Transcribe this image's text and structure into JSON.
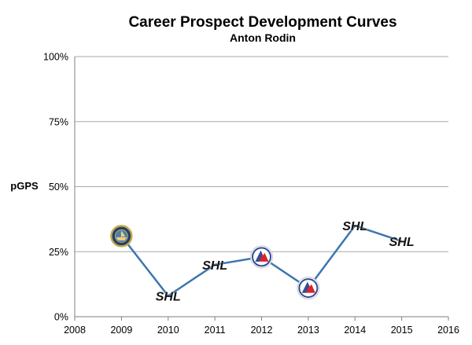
{
  "chart_data": {
    "type": "line",
    "title": "Career Prospect Development Curves",
    "subtitle": "Anton Rodin",
    "ylabel": "pGPS",
    "xlabel": "",
    "xlim": [
      2008,
      2016
    ],
    "ylim": [
      0,
      100
    ],
    "x_ticks": [
      "2008",
      "2009",
      "2010",
      "2011",
      "2012",
      "2013",
      "2014",
      "2015",
      "2016"
    ],
    "y_ticks": [
      "0%",
      "25%",
      "50%",
      "75%",
      "100%"
    ],
    "grid": true,
    "series": [
      {
        "color": "#3b76b0",
        "points": [
          {
            "x": 2009,
            "y": 31,
            "marker": "team-logo-icon"
          },
          {
            "x": 2010,
            "y": 8,
            "marker": "shl-logo-icon",
            "marker_text": "SHL"
          },
          {
            "x": 2011,
            "y": 20,
            "marker": "shl-logo-icon",
            "marker_text": "SHL"
          },
          {
            "x": 2012,
            "y": 23,
            "marker": "ahl-logo-icon"
          },
          {
            "x": 2013,
            "y": 11,
            "marker": "ahl-logo-icon"
          },
          {
            "x": 2014,
            "y": 35,
            "marker": "shl-logo-icon",
            "marker_text": "SHL"
          },
          {
            "x": 2015,
            "y": 29,
            "marker": "shl-logo-icon",
            "marker_text": "SHL"
          }
        ]
      }
    ]
  }
}
